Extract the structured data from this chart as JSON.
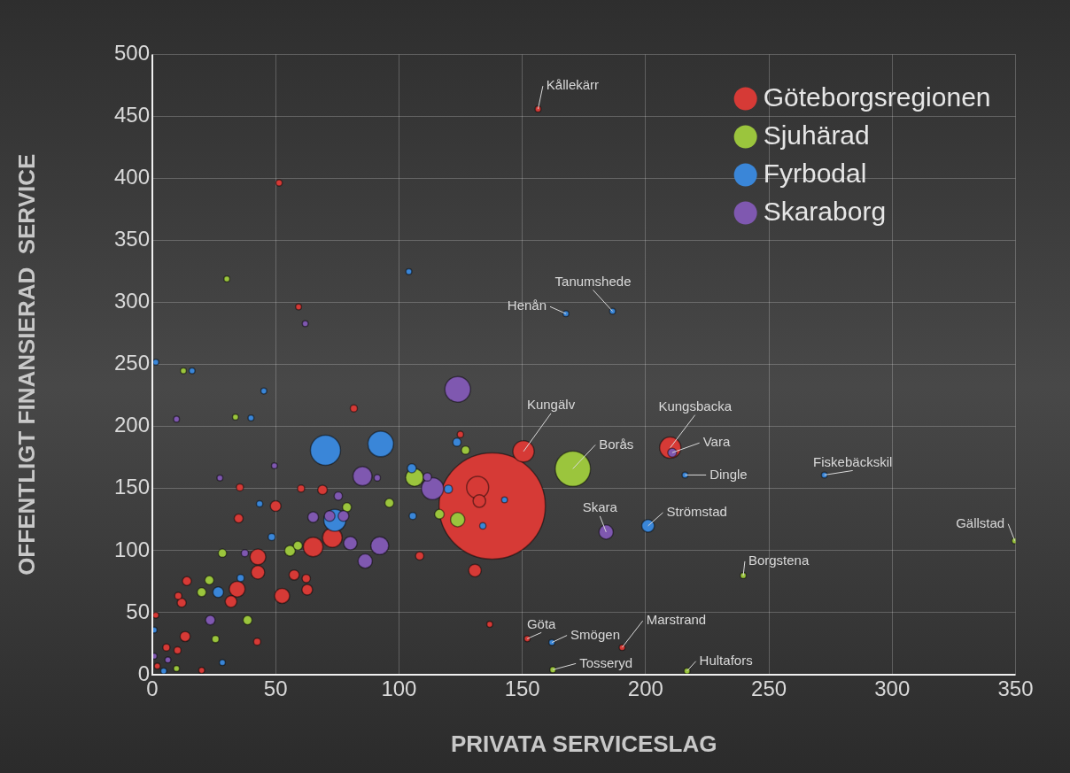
{
  "chart_data": {
    "type": "bubble",
    "xlabel": "PRIVATA SERVICESLAG",
    "ylabel": "OFFENTLIGT FINANSIERAD  SERVICE",
    "xlim": [
      0,
      350
    ],
    "xticks": [
      0,
      50,
      100,
      150,
      200,
      250,
      300,
      350
    ],
    "ylim": [
      0,
      500
    ],
    "yticks": [
      0,
      50,
      100,
      150,
      200,
      250,
      300,
      350,
      400,
      450,
      500
    ],
    "grid": true,
    "legend": "top right",
    "series": [
      {
        "name": "Göteborgsregionen",
        "color": "#d63a36",
        "x": [
          137.8,
          150.5,
          210,
          156.4,
          152,
          190.5,
          69,
          50,
          65.2,
          73,
          42.8,
          42.8,
          34.4,
          31.9,
          52.6,
          62.8,
          57.5,
          62.4,
          13.3,
          14,
          11.9,
          10.5,
          35,
          35.5,
          60.3,
          81.7,
          42.5,
          10.2,
          5.7,
          131.9,
          132.6,
          130.8,
          108.4,
          124.9,
          136.8,
          51.4,
          59.3,
          2,
          20,
          1.4
        ],
        "values": [
          136,
          180,
          183,
          456,
          29,
          22,
          149,
          136,
          103,
          110.5,
          95,
          82.5,
          69,
          59,
          63.6,
          68.5,
          80.4,
          77.6,
          30.8,
          75.5,
          58,
          63.6,
          126,
          151,
          150,
          214.7,
          26.6,
          19.6,
          22,
          151,
          140,
          84,
          95.8,
          193.7,
          40.6,
          396.5,
          296.5,
          7,
          3.5,
          48
        ],
        "sizes": [
          1,
          0.04,
          0.04,
          0.003,
          0.003,
          0.003,
          0.008,
          0.01,
          0.034,
          0.034,
          0.022,
          0.016,
          0.022,
          0.012,
          0.02,
          0.01,
          0.009,
          0.006,
          0.009,
          0.007,
          0.007,
          0.0044,
          0.007,
          0.0044,
          0.0044,
          0.0044,
          0.0044,
          0.0044,
          0.0044,
          0.043,
          0.014,
          0.014,
          0.006,
          0.0035,
          0.003,
          0.0035,
          0.003,
          0.003,
          0.003,
          0.003
        ]
      },
      {
        "name": "Sjuhärad",
        "color": "#9bc53d",
        "x": [
          170.5,
          349.7,
          239.6,
          162.4,
          216.8,
          106.3,
          55.8,
          59,
          23.1,
          20,
          38.6,
          25.6,
          28.4,
          96.1,
          78.9,
          127,
          123.8,
          116.4,
          30.2,
          12.6,
          33.7,
          9.8
        ],
        "values": [
          166,
          108,
          80,
          4,
          3,
          159,
          100,
          104,
          76.2,
          66.5,
          44,
          28.7,
          98,
          138.5,
          135,
          181,
          125,
          129.4,
          319,
          245,
          207.7,
          5
        ],
        "sizes": [
          0.11,
          0.003,
          0.003,
          0.003,
          0.003,
          0.028,
          0.01,
          0.007,
          0.007,
          0.007,
          0.007,
          0.0044,
          0.006,
          0.007,
          0.007,
          0.006,
          0.018,
          0.008,
          0.003,
          0.003,
          0.003,
          0.003
        ]
      },
      {
        "name": "Fyrbodal",
        "color": "#3a86d8",
        "x": [
          167.7,
          186.6,
          216,
          272.5,
          201,
          162,
          70.2,
          92.6,
          74,
          26.7,
          48.4,
          35.8,
          43.5,
          105.2,
          105.6,
          28.4,
          123.5,
          134,
          142.8,
          120,
          104,
          1.4,
          16.1,
          45.2,
          40,
          4.6,
          0.7
        ],
        "values": [
          291,
          293,
          161,
          161,
          120,
          26,
          181,
          186,
          124.5,
          66.5,
          111,
          78,
          137.8,
          166.4,
          128,
          9.8,
          187.4,
          120,
          141,
          149.6,
          325,
          252,
          245,
          228.7,
          207,
          3,
          36
        ],
        "sizes": [
          0.003,
          0.003,
          0.003,
          0.003,
          0.014,
          0.003,
          0.08,
          0.058,
          0.043,
          0.01,
          0.0044,
          0.0044,
          0.0035,
          0.007,
          0.0044,
          0.003,
          0.006,
          0.0035,
          0.003,
          0.006,
          0.003,
          0.003,
          0.003,
          0.003,
          0.003,
          0.003,
          0.003
        ]
      },
      {
        "name": "Skaraborg",
        "color": "#7f58b0",
        "x": [
          210.8,
          184,
          85.2,
          65.2,
          71.9,
          77.5,
          80.3,
          92.2,
          86.3,
          23.5,
          49.5,
          75.4,
          91.2,
          37.5,
          27.4,
          123.8,
          113.6,
          111.5,
          62,
          9.8,
          0.7,
          6.3
        ],
        "values": [
          179,
          115,
          160,
          127,
          128,
          128,
          106,
          104,
          91.6,
          44,
          168.5,
          144,
          158.7,
          98,
          158.7,
          230,
          150,
          159.4,
          283,
          206,
          15,
          12
        ],
        "sizes": [
          0.007,
          0.018,
          0.032,
          0.01,
          0.01,
          0.01,
          0.016,
          0.028,
          0.018,
          0.008,
          0.003,
          0.006,
          0.0035,
          0.0044,
          0.003,
          0.058,
          0.043,
          0.006,
          0.003,
          0.003,
          0.003,
          0.003
        ]
      }
    ],
    "annotations": [
      {
        "text": "Kållekärr",
        "x": 156.4,
        "y": 456
      },
      {
        "text": "Henån",
        "x": 167.7,
        "y": 291
      },
      {
        "text": "Tanumshede",
        "x": 186.6,
        "y": 293
      },
      {
        "text": "Kungälv",
        "x": 150.5,
        "y": 180
      },
      {
        "text": "Kungsbacka",
        "x": 210,
        "y": 183
      },
      {
        "text": "Vara",
        "x": 210.8,
        "y": 179
      },
      {
        "text": "Borås",
        "x": 170.5,
        "y": 166
      },
      {
        "text": "Dingle",
        "x": 216,
        "y": 161
      },
      {
        "text": "Fiskebäckskil",
        "x": 272.5,
        "y": 161
      },
      {
        "text": "Skara",
        "x": 184,
        "y": 115
      },
      {
        "text": "Strömstad",
        "x": 201,
        "y": 120
      },
      {
        "text": "Gällstad",
        "x": 349.7,
        "y": 108
      },
      {
        "text": "Borgstena",
        "x": 239.6,
        "y": 80
      },
      {
        "text": "Göta",
        "x": 152,
        "y": 29
      },
      {
        "text": "Smögen",
        "x": 162,
        "y": 26
      },
      {
        "text": "Marstrand",
        "x": 190.5,
        "y": 22
      },
      {
        "text": "Tosseryd",
        "x": 162.4,
        "y": 4
      },
      {
        "text": "Hultafors",
        "x": 216.8,
        "y": 3
      }
    ]
  }
}
